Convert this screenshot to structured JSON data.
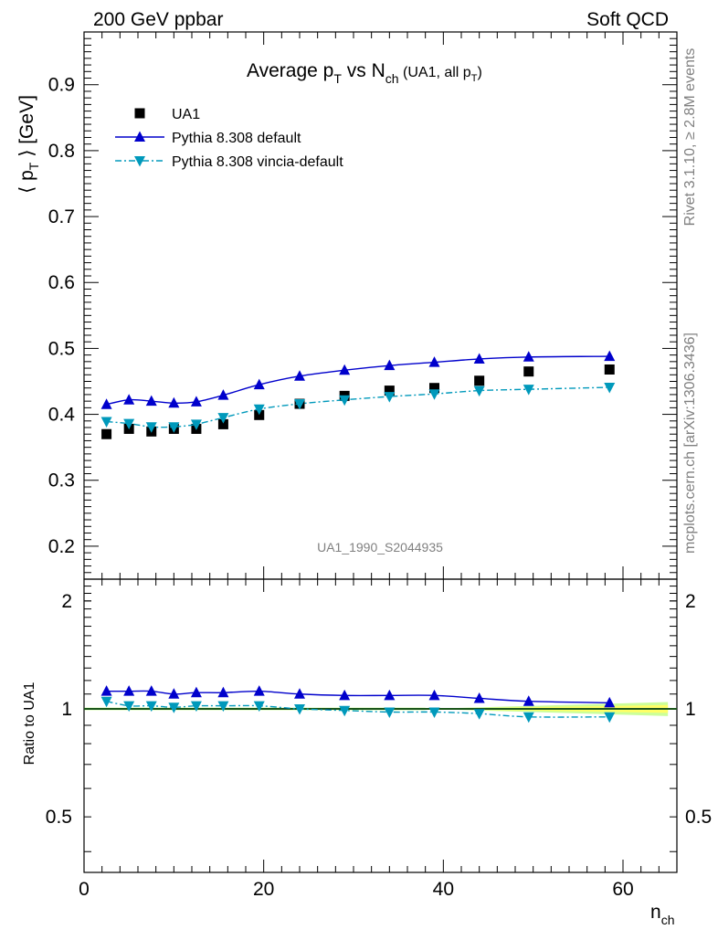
{
  "header": {
    "left": "200 GeV ppbar",
    "right": "Soft QCD"
  },
  "side_labels": {
    "rivet": "Rivet 3.1.10, ≥ 2.8M events",
    "mcplots": "mcplots.cern.ch [arXiv:1306.3436]"
  },
  "colors": {
    "data": "#000000",
    "pythia_default": "#0000cc",
    "vincia": "#0099bb",
    "band_inner": "#ffff66",
    "band_outer": "#ccff99",
    "gray": "#808080"
  },
  "chart_data": {
    "type": "line",
    "title_parts": {
      "main": "Average p",
      "sub1": "T",
      "mid": " vs N",
      "sub2": "ch",
      "small": " (UA1, all p",
      "sub3": "T",
      "end": ")"
    },
    "ylabel_parts": {
      "open": "⟨ p",
      "sub": "T",
      "close": " ⟩ [GeV]"
    },
    "xlabel_parts": {
      "main": "n",
      "sub": "ch"
    },
    "ratio_ylabel": "Ratio to UA1",
    "watermark": "UA1_1990_S2044935",
    "xlim": [
      0,
      66
    ],
    "ylim": [
      0.15,
      0.98
    ],
    "ratio_ylim": [
      0.35,
      2.3
    ],
    "ratio_log_scale": true,
    "x_ticks": [
      "0",
      "20",
      "40",
      "60"
    ],
    "y_ticks": [
      "0.2",
      "0.3",
      "0.4",
      "0.5",
      "0.6",
      "0.7",
      "0.8",
      "0.9"
    ],
    "ratio_ticks": [
      "0.5",
      "1",
      "2"
    ],
    "legend_position": "top-left",
    "series": [
      {
        "name": "UA1",
        "marker": "square",
        "x": [
          2.5,
          5,
          7.5,
          10,
          12.5,
          15.5,
          19.5,
          24,
          29,
          34,
          39,
          44,
          49.5,
          58.5
        ],
        "values": [
          0.37,
          0.378,
          0.374,
          0.378,
          0.378,
          0.385,
          0.399,
          0.416,
          0.428,
          0.436,
          0.44,
          0.451,
          0.465,
          0.468
        ]
      },
      {
        "name": "Pythia 8.308 default",
        "marker": "triangle-up",
        "x": [
          2.5,
          5,
          7.5,
          10,
          12.5,
          15.5,
          19.5,
          24,
          29,
          34,
          39,
          44,
          49.5,
          58.5
        ],
        "values": [
          0.415,
          0.422,
          0.42,
          0.417,
          0.419,
          0.429,
          0.445,
          0.458,
          0.467,
          0.474,
          0.479,
          0.484,
          0.487,
          0.488
        ],
        "ratio": [
          1.12,
          1.12,
          1.12,
          1.1,
          1.11,
          1.11,
          1.12,
          1.1,
          1.09,
          1.09,
          1.09,
          1.07,
          1.05,
          1.04
        ]
      },
      {
        "name": "Pythia 8.308 vincia-default",
        "marker": "triangle-down",
        "x": [
          2.5,
          5,
          7.5,
          10,
          12.5,
          15.5,
          19.5,
          24,
          29,
          34,
          39,
          44,
          49.5,
          58.5
        ],
        "values": [
          0.389,
          0.386,
          0.381,
          0.381,
          0.385,
          0.395,
          0.408,
          0.416,
          0.422,
          0.427,
          0.431,
          0.436,
          0.438,
          0.441
        ],
        "ratio": [
          1.05,
          1.02,
          1.02,
          1.01,
          1.02,
          1.02,
          1.02,
          1.0,
          0.99,
          0.98,
          0.98,
          0.97,
          0.95,
          0.95
        ]
      }
    ]
  }
}
